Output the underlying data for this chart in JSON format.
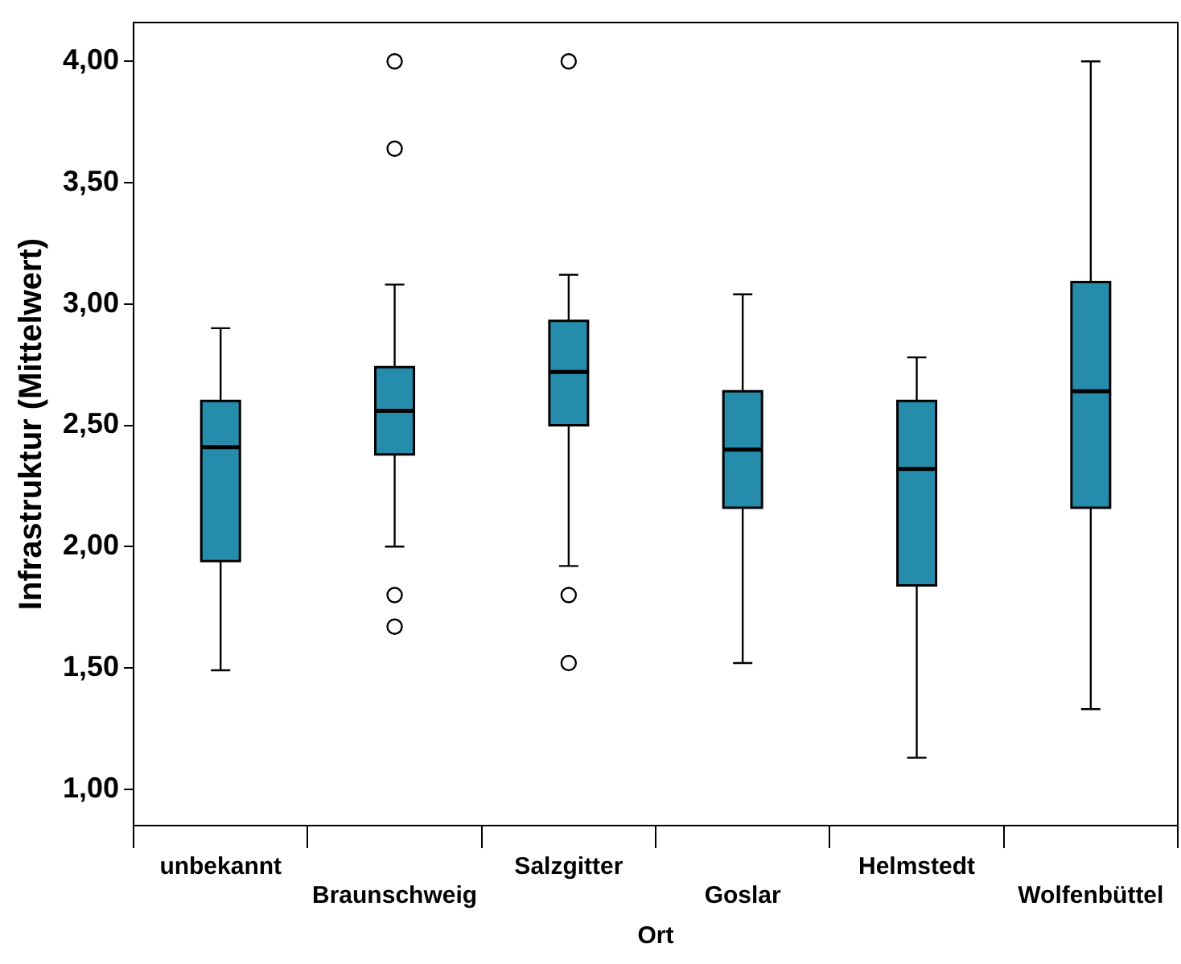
{
  "chart_data": {
    "type": "box",
    "xlabel": "Ort",
    "ylabel": "Infrastruktur (Mittelwert)",
    "categories": [
      "unbekannt",
      "Braunschweig",
      "Salzgitter",
      "Goslar",
      "Helmstedt",
      "Wolfenbüttel"
    ],
    "color": "#268cac",
    "boxes": [
      {
        "low": 1.49,
        "q1": 1.94,
        "median": 2.41,
        "q3": 2.6,
        "high": 2.9
      },
      {
        "low": 2.0,
        "q1": 2.38,
        "median": 2.56,
        "q3": 2.74,
        "high": 3.08,
        "outliers": [
          4.0,
          3.64,
          1.8,
          1.67
        ]
      },
      {
        "low": 1.92,
        "q1": 2.5,
        "median": 2.72,
        "q3": 2.93,
        "high": 3.12,
        "outliers": [
          4.0,
          1.8,
          1.52
        ]
      },
      {
        "low": 1.52,
        "q1": 2.16,
        "median": 2.4,
        "q3": 2.64,
        "high": 3.04
      },
      {
        "low": 1.13,
        "q1": 1.84,
        "median": 2.32,
        "q3": 2.6,
        "high": 2.78
      },
      {
        "low": 1.33,
        "q1": 2.16,
        "median": 2.64,
        "q3": 3.09,
        "high": 4.0
      }
    ],
    "ylim": [
      0.85,
      4.16
    ],
    "yticks": [
      {
        "value": 1,
        "label": "1,00"
      },
      {
        "value": 1.5,
        "label": "1,50"
      },
      {
        "value": 2,
        "label": "2,00"
      },
      {
        "value": 2.5,
        "label": "2,50"
      },
      {
        "value": 3,
        "label": "3,00"
      },
      {
        "value": 3.5,
        "label": "3,50"
      },
      {
        "value": 4,
        "label": "4,00"
      }
    ],
    "grid": false,
    "legend": false
  }
}
